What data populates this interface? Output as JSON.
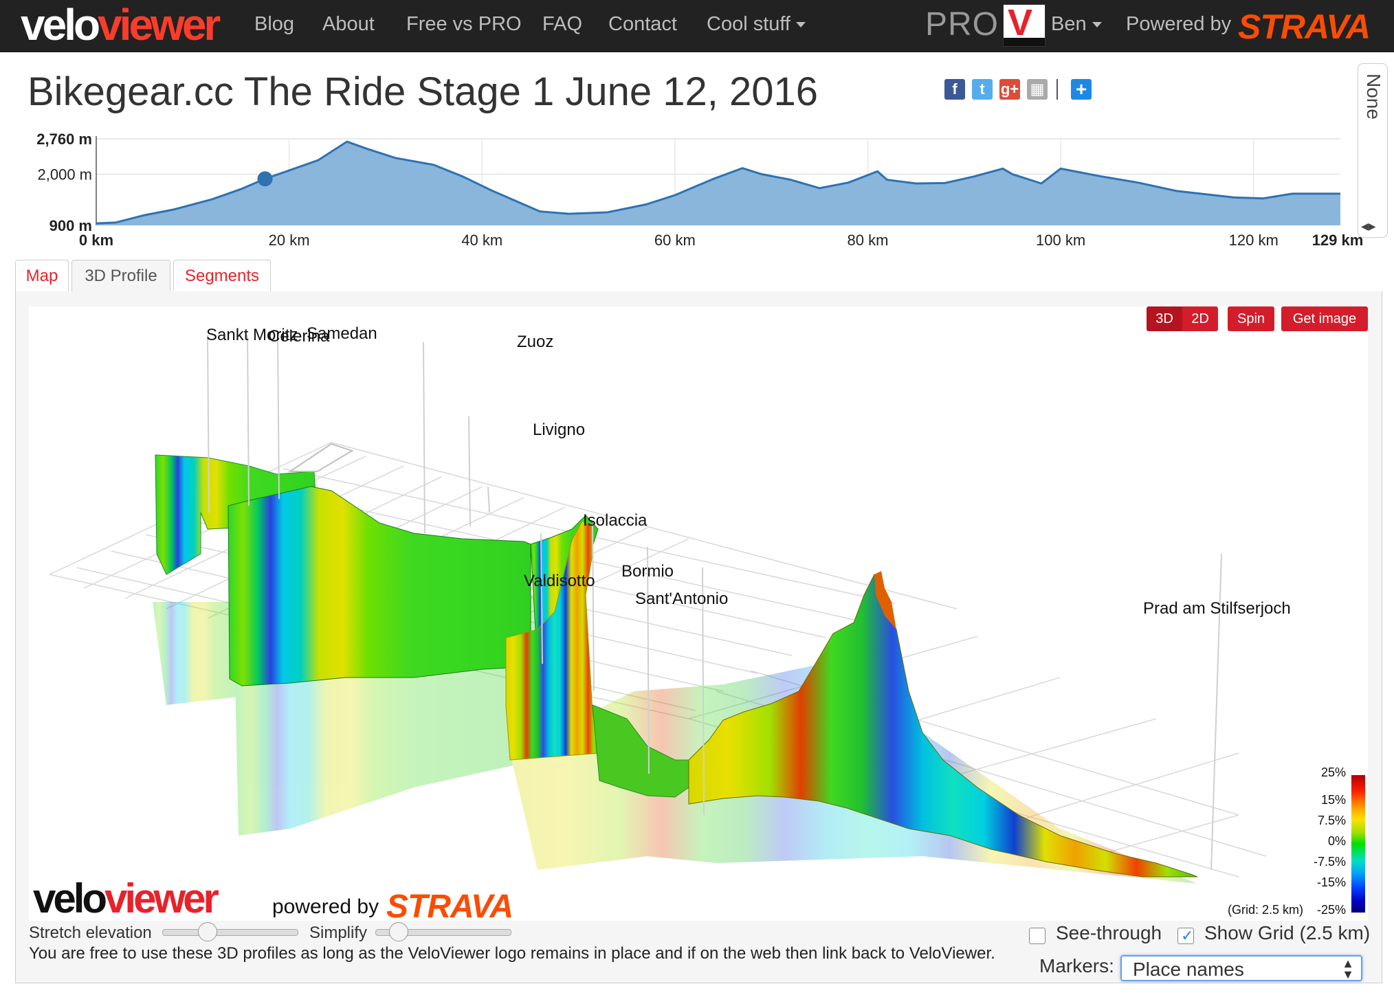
{
  "nav": {
    "logo_velo": "velo",
    "logo_viewer": "viewer",
    "items": [
      "Blog",
      "About",
      "Free vs PRO",
      "FAQ",
      "Contact",
      "Cool stuff"
    ],
    "pro_label": "PRO",
    "user": "Ben",
    "powered_by": "Powered by",
    "strava": "STRAVA"
  },
  "title": "Bikegear.cc The Ride Stage 1 June 12, 2016",
  "side_tab": "None",
  "elevation": {
    "y_ticks": [
      "2,760 m",
      "2,000 m",
      "900 m"
    ],
    "x_ticks": [
      "0 km",
      "20 km",
      "40 km",
      "60 km",
      "80 km",
      "100 km",
      "120 km",
      "129 km"
    ],
    "fill_color": "#8ab6dc",
    "line_color": "#2e72b0",
    "marker_km": 17.5,
    "profile": [
      [
        0,
        945
      ],
      [
        2,
        960
      ],
      [
        5,
        1120
      ],
      [
        8,
        1240
      ],
      [
        12,
        1460
      ],
      [
        15,
        1680
      ],
      [
        17.5,
        1900
      ],
      [
        20,
        2080
      ],
      [
        23,
        2300
      ],
      [
        26,
        2700
      ],
      [
        28,
        2550
      ],
      [
        31,
        2350
      ],
      [
        35,
        2200
      ],
      [
        38,
        1950
      ],
      [
        41,
        1650
      ],
      [
        44,
        1380
      ],
      [
        46,
        1200
      ],
      [
        49,
        1150
      ],
      [
        53,
        1180
      ],
      [
        57,
        1350
      ],
      [
        60,
        1550
      ],
      [
        64,
        1900
      ],
      [
        67,
        2130
      ],
      [
        69,
        2000
      ],
      [
        72,
        1880
      ],
      [
        75,
        1700
      ],
      [
        78,
        1820
      ],
      [
        81,
        2060
      ],
      [
        82,
        1880
      ],
      [
        85,
        1800
      ],
      [
        88,
        1810
      ],
      [
        91,
        1950
      ],
      [
        94,
        2120
      ],
      [
        95,
        2000
      ],
      [
        98,
        1800
      ],
      [
        100,
        2120
      ],
      [
        104,
        1960
      ],
      [
        108,
        1820
      ],
      [
        112,
        1640
      ],
      [
        118,
        1500
      ],
      [
        121,
        1480
      ],
      [
        124,
        1580
      ],
      [
        129,
        1580
      ]
    ]
  },
  "tabs": [
    "Map",
    "3D Profile",
    "Segments"
  ],
  "active_tab": "3D Profile",
  "view_buttons": [
    "3D",
    "2D",
    "Spin",
    "Get image"
  ],
  "places": [
    "Sankt Moritz",
    "Celerina",
    "Samedan",
    "Zuoz",
    "Livigno",
    "Isolaccia",
    "Valdisotto",
    "Bormio",
    "Sant'Antonio",
    "Prad am Stilfserjoch"
  ],
  "legend": {
    "ticks": [
      "25%",
      "15%",
      "7.5%",
      "0%",
      "-7.5%",
      "-15%",
      "-25%"
    ],
    "grid_note": "(Grid: 2.5 km)"
  },
  "bottom": {
    "logo_velo": "velo",
    "logo_viewer": "viewer",
    "powered_by": "powered by",
    "strava": "STRAVA",
    "stretch_label": "Stretch elevation",
    "simplify_label": "Simplify",
    "notice": "You are free to use these 3D profiles as long as the VeloViewer logo remains in place and if on the web then link back to VeloViewer.",
    "see_through_label": "See-through",
    "see_through_checked": false,
    "show_grid_label": "Show Grid (2.5 km)",
    "show_grid_checked": true,
    "markers_label": "Markers:",
    "markers_value": "Place names"
  }
}
